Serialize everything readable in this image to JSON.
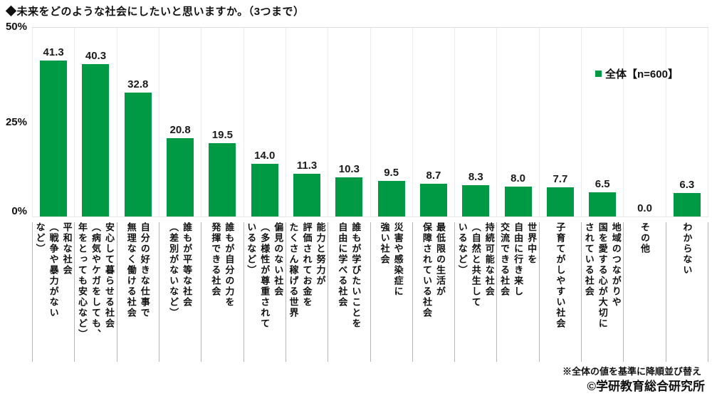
{
  "title": "◆未来をどのような社会にしたいと思いますか。（3つまで）",
  "legend": {
    "label": "全体【n=600】",
    "swatch_color": "#009944"
  },
  "y_axis": {
    "ticks": [
      "50%",
      "25%",
      "0%"
    ]
  },
  "footnote": "※全体の値を基準に降順並び替え",
  "copyright": "©学研教育総合研究所",
  "colors": {
    "bar": "#009944"
  },
  "chart_data": {
    "type": "bar",
    "title": "未来をどのような社会にしたいと思いますか。（3つまで）",
    "series_name": "全体【n=600】",
    "legend_position": "top-right",
    "ylim": [
      0,
      50
    ],
    "yticks": [
      50,
      25,
      0
    ],
    "ytick_labels": [
      "50%",
      "25%",
      "0%"
    ],
    "grid": "vertical column separators only",
    "bar_color": "#009944",
    "sort_note": "※全体の値を基準に降順並び替え",
    "categories": [
      "平和な社会\n（戦争や暴力がない\nなど）",
      "安心して暮らせる社会\n（病気やケガをしても、\n年をとっても安心など）",
      "自分の好きな仕事で\n無理なく働ける社会",
      "誰もが平等な社会\n（差別がないなど）",
      "誰もが自分の力を\n発揮できる社会",
      "偏見のない社会\n（多様性が尊重されて\nいるなど）",
      "能力と努力が\n評価されてお金を\nたくさん稼げる世界",
      "誰もが学びたいことを\n自由に学べる社会",
      "災害や感染症に\n強い社会",
      "最低限の生活が\n保障されている社会",
      "持続可能な社会\n（自然と共生して\nいるなど）",
      "世界中を\n自由に行き来し\n交流できる社会",
      "子育てがしやすい社会",
      "地域のつながりや\n国を愛する心が大切に\nされている社会",
      "その他",
      "わからない"
    ],
    "values": [
      41.3,
      40.3,
      32.8,
      20.8,
      19.5,
      14.0,
      11.3,
      10.3,
      9.5,
      8.7,
      8.3,
      8.0,
      7.7,
      6.5,
      0.0,
      6.3
    ]
  }
}
